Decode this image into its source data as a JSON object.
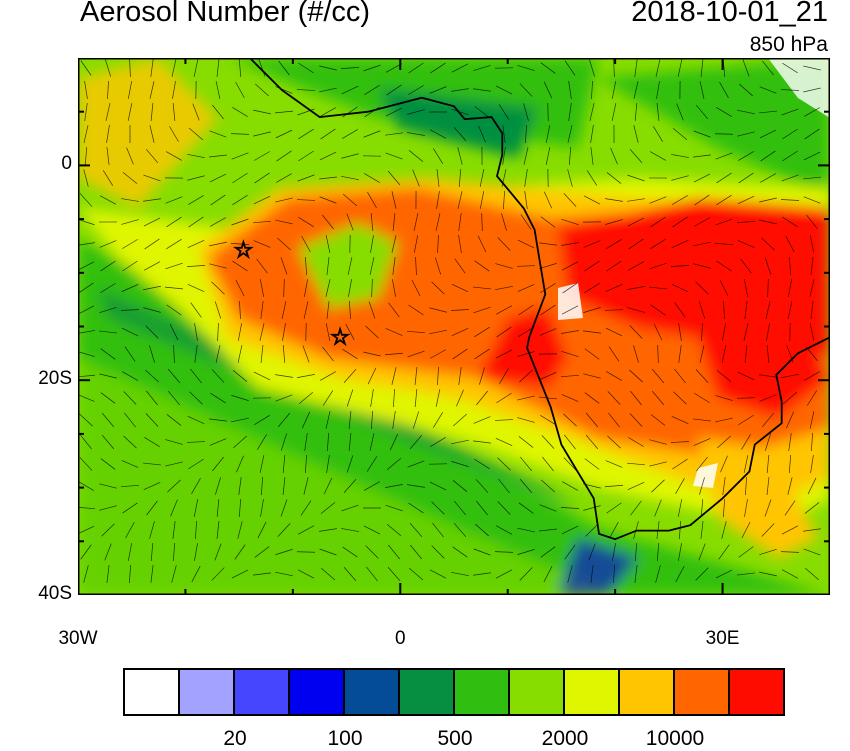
{
  "title": "Aerosol Number (#/cc)",
  "date": "2018-10-01_21",
  "level": "850 hPa",
  "map": {
    "lon_range": [
      -30,
      40
    ],
    "lat_range": [
      -40,
      10
    ],
    "x_ticks": [
      {
        "lon": -30,
        "label": "30W"
      },
      {
        "lon": 0,
        "label": "0"
      },
      {
        "lon": 30,
        "label": "30E"
      }
    ],
    "y_ticks": [
      {
        "lat": 0,
        "label": "0"
      },
      {
        "lat": -20,
        "label": "20S"
      },
      {
        "lat": -40,
        "label": "40S"
      }
    ],
    "markers": [
      {
        "lon": -14.6,
        "lat": -7.9,
        "symbol": "star"
      },
      {
        "lon": -5.6,
        "lat": -16,
        "symbol": "star"
      }
    ],
    "overlay": "wind barbs"
  },
  "colorbar": {
    "colors": [
      "#ffffff",
      "#a3a3ff",
      "#4646ff",
      "#0000f0",
      "#044c96",
      "#068f40",
      "#30bf10",
      "#88dd00",
      "#e0f500",
      "#ffc500",
      "#ff6600",
      "#ff0c00"
    ],
    "labels": [
      {
        "after_box": 2,
        "text": "20"
      },
      {
        "after_box": 4,
        "text": "100"
      },
      {
        "after_box": 6,
        "text": "500"
      },
      {
        "after_box": 8,
        "text": "2000"
      },
      {
        "after_box": 10,
        "text": "10000"
      }
    ]
  }
}
